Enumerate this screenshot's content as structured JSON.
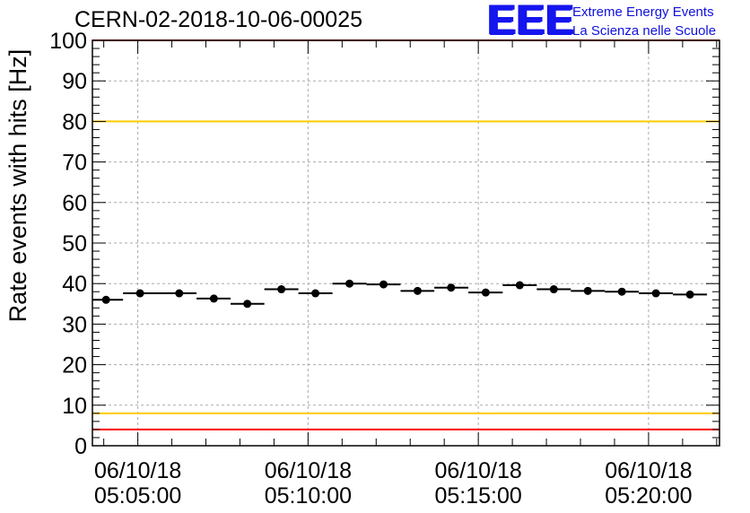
{
  "title": "CERN-02-2018-10-06-00025",
  "logo": {
    "mark": "EEE",
    "line1": "Extreme Energy Events",
    "line2": "La Scienza nelle Scuole"
  },
  "chart_data": {
    "type": "scatter",
    "title": "CERN-02-2018-10-06-00025",
    "xlabel": "",
    "ylabel": "Rate events with hits [Hz]",
    "xlim": [
      "2018-10-06 05:03:40",
      "2018-10-06 05:22:05"
    ],
    "ylim": [
      0,
      100
    ],
    "x_ticks": [
      {
        "value": "2018-10-06 05:05:00",
        "date": "06/10/18",
        "time": "05:05:00"
      },
      {
        "value": "2018-10-06 05:10:00",
        "date": "06/10/18",
        "time": "05:10:00"
      },
      {
        "value": "2018-10-06 05:15:00",
        "date": "06/10/18",
        "time": "05:15:00"
      },
      {
        "value": "2018-10-06 05:20:00",
        "date": "06/10/18",
        "time": "05:20:00"
      }
    ],
    "y_ticks": [
      "0",
      "10",
      "20",
      "30",
      "40",
      "50",
      "60",
      "70",
      "80",
      "90",
      "100"
    ],
    "grid": true,
    "x_error_bars": true,
    "series": [
      {
        "points": [
          {
            "x": "2018-10-06 05:04:04",
            "y": 36.0
          },
          {
            "x": "2018-10-06 05:05:04",
            "y": 37.6
          },
          {
            "x": "2018-10-06 05:06:13",
            "y": 37.6
          },
          {
            "x": "2018-10-06 05:07:14",
            "y": 36.3
          },
          {
            "x": "2018-10-06 05:08:13",
            "y": 35.0
          },
          {
            "x": "2018-10-06 05:09:13",
            "y": 38.6
          },
          {
            "x": "2018-10-06 05:10:13",
            "y": 37.6
          },
          {
            "x": "2018-10-06 05:11:13",
            "y": 40.0
          },
          {
            "x": "2018-10-06 05:12:13",
            "y": 39.8
          },
          {
            "x": "2018-10-06 05:13:13",
            "y": 38.2
          },
          {
            "x": "2018-10-06 05:14:12",
            "y": 39.0
          },
          {
            "x": "2018-10-06 05:15:13",
            "y": 37.8
          },
          {
            "x": "2018-10-06 05:16:13",
            "y": 39.6
          },
          {
            "x": "2018-10-06 05:17:13",
            "y": 38.6
          },
          {
            "x": "2018-10-06 05:18:13",
            "y": 38.2
          },
          {
            "x": "2018-10-06 05:19:13",
            "y": 38.0
          },
          {
            "x": "2018-10-06 05:20:13",
            "y": 37.6
          },
          {
            "x": "2018-10-06 05:21:13",
            "y": 37.3
          }
        ],
        "color": "#000000"
      }
    ],
    "reference_lines": [
      {
        "y": 100,
        "color": "#ff0000"
      },
      {
        "y": 80,
        "color": "#ffcc00"
      },
      {
        "y": 8,
        "color": "#ffcc00"
      },
      {
        "y": 4,
        "color": "#ff0000"
      }
    ]
  }
}
